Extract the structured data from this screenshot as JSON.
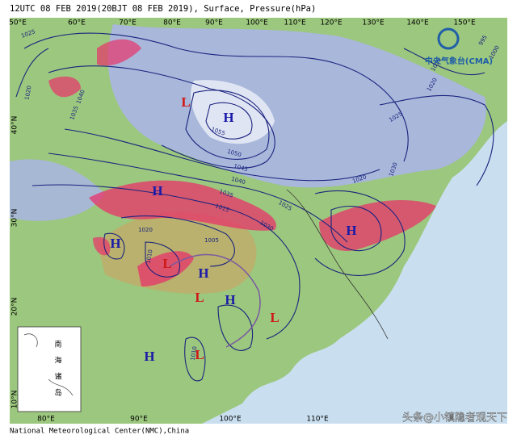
{
  "header": {
    "title": "12UTC 08  FEB 2019(20BJT 08  FEB 2019), Surface, Pressure(hPa)"
  },
  "footer": {
    "credit": "National Meteorological Center(NMC),China"
  },
  "logo": {
    "text": "中央气象台(CMA)"
  },
  "watermark": "头条@小镇隐者观天下",
  "top_longitudes": [
    "50°E",
    "60°E",
    "70°E",
    "80°E",
    "90°E",
    "100°E",
    "110°E",
    "120°E",
    "130°E",
    "140°E",
    "150°E"
  ],
  "bottom_longitudes": [
    "80°E",
    "90°E",
    "100°E",
    "110°E"
  ],
  "latitudes": [
    "40°N",
    "30°N",
    "20°N",
    "10°N"
  ],
  "pressure_centers": [
    "L",
    "H",
    "H",
    "H",
    "L",
    "H",
    "L",
    "H",
    "L",
    "H",
    "H",
    "L"
  ],
  "isobar_labels": [
    "1040",
    "1035",
    "1055",
    "1050",
    "1045",
    "1040",
    "1035",
    "1030",
    "1025",
    "1020",
    "1015",
    "1005",
    "1010",
    "1020",
    "1025",
    "1030",
    "1015",
    "1020",
    "1000",
    "995",
    "1025",
    "1020",
    "1010"
  ],
  "inset": {
    "labels": [
      "南",
      "海",
      "诸",
      "岛"
    ]
  }
}
